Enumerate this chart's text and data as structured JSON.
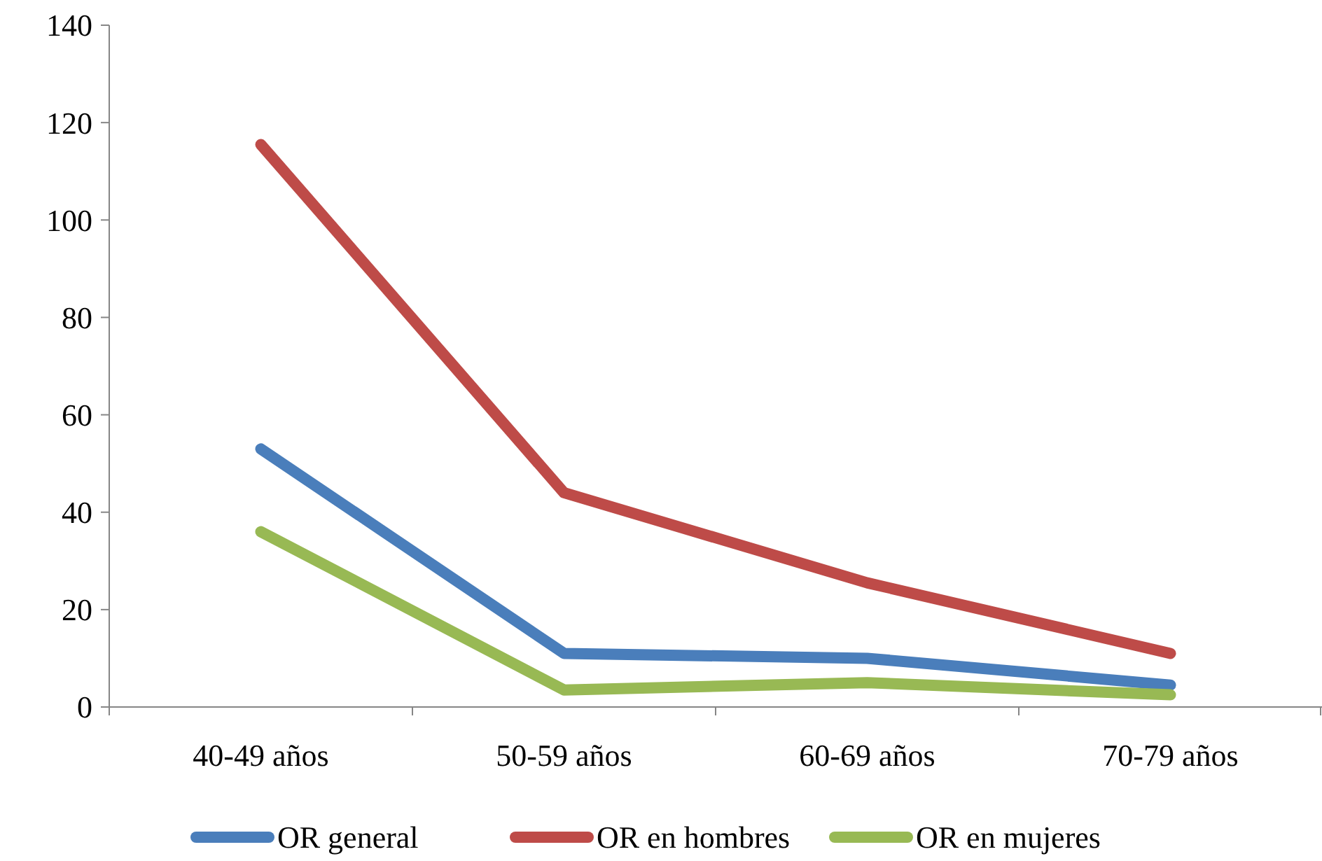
{
  "chart_data": {
    "type": "line",
    "categories": [
      "40-49 años",
      "50-59 años",
      "60-69 años",
      "70-79 años"
    ],
    "series": [
      {
        "name": "OR general",
        "color": "#4a7ebb",
        "values": [
          53,
          11,
          10,
          4.5
        ]
      },
      {
        "name": "OR en hombres",
        "color": "#be4b48",
        "values": [
          115.5,
          44,
          25.5,
          11
        ]
      },
      {
        "name": "OR en mujeres",
        "color": "#98b954",
        "values": [
          36,
          3.5,
          5,
          2.5
        ]
      }
    ],
    "ylim": [
      0,
      140
    ],
    "yticks": [
      0,
      20,
      40,
      60,
      80,
      100,
      120,
      140
    ],
    "grid": false,
    "legend": "bottom",
    "marker": "none",
    "line_style": "solid"
  }
}
